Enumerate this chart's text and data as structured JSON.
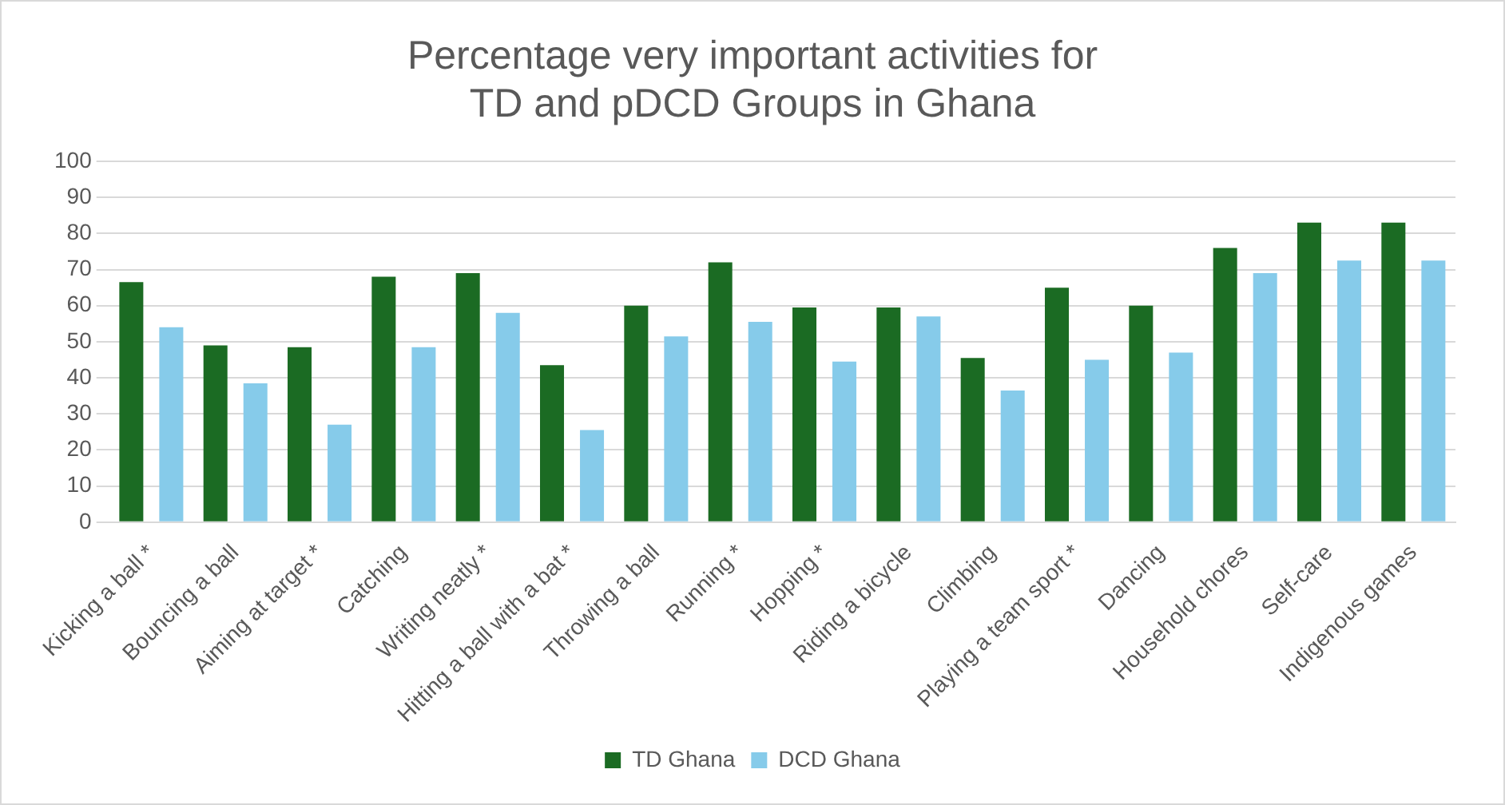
{
  "chart_data": {
    "type": "bar",
    "title": [
      "Percentage very important activities for",
      "TD and pDCD Groups in Ghana"
    ],
    "categories": [
      "Kicking a ball *",
      "Bouncing a ball",
      "Aiming at target *",
      "Catching",
      "Writing neatly *",
      "Hitting a ball with a bat *",
      "Throwing a ball",
      "Running *",
      "Hopping *",
      "Riding a bicycle",
      "Climbing",
      "Playing a team sport *",
      "Dancing",
      "Household chores",
      "Self-care",
      "Indigenous games"
    ],
    "series": [
      {
        "name": "TD Ghana",
        "color": "#1b6b23",
        "values": [
          66.5,
          49,
          48.5,
          68,
          69,
          43.5,
          60,
          72,
          59.5,
          59.5,
          45.5,
          65,
          60,
          76,
          83,
          83
        ]
      },
      {
        "name": "DCD Ghana",
        "color": "#86cbea",
        "values": [
          54,
          38.5,
          27,
          48.5,
          58,
          25.5,
          51.5,
          55.5,
          44.5,
          57,
          36.5,
          45,
          47,
          69,
          72.5,
          72.5
        ]
      }
    ],
    "ylim": [
      0,
      100
    ],
    "yticks": [
      0,
      10,
      20,
      30,
      40,
      50,
      60,
      70,
      80,
      90,
      100
    ],
    "grid": "y",
    "legend": "bottom"
  }
}
